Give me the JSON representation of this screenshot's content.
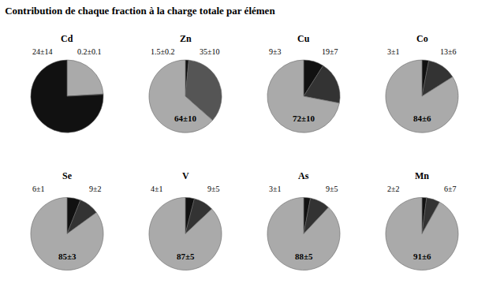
{
  "title": "Contribution de chaque fraction à la charge totale par élémen",
  "chart_data": [
    {
      "type": "pie",
      "title": "Cd",
      "values": [
        24.0,
        0.2,
        75.8
      ],
      "colors": [
        "#aaaaaa",
        "#222222",
        "#111111"
      ],
      "annotations": [
        "24±14",
        "0.2±0.1"
      ]
    },
    {
      "type": "pie",
      "title": "Zn",
      "values": [
        1.5,
        35.0,
        63.5
      ],
      "colors": [
        "#111111",
        "#555555",
        "#aaaaaa"
      ],
      "annotations": [
        "1.5±0.2",
        "35±10",
        "64±10"
      ]
    },
    {
      "type": "pie",
      "title": "Cu",
      "values": [
        9.0,
        19.0,
        72.0
      ],
      "colors": [
        "#111111",
        "#333333",
        "#aaaaaa"
      ],
      "annotations": [
        "9±3",
        "19±7",
        "72±10"
      ]
    },
    {
      "type": "pie",
      "title": "Co",
      "values": [
        3.0,
        13.0,
        84.0
      ],
      "colors": [
        "#111111",
        "#333333",
        "#aaaaaa"
      ],
      "annotations": [
        "3±1",
        "13±6",
        "84±6"
      ]
    },
    {
      "type": "pie",
      "title": "Se",
      "values": [
        6.0,
        9.0,
        85.0
      ],
      "colors": [
        "#111111",
        "#333333",
        "#aaaaaa"
      ],
      "annotations": [
        "6±1",
        "9±2",
        "85±3"
      ]
    },
    {
      "type": "pie",
      "title": "V",
      "values": [
        4.0,
        9.0,
        87.0
      ],
      "colors": [
        "#111111",
        "#333333",
        "#aaaaaa"
      ],
      "annotations": [
        "4±1",
        "9±5",
        "87±5"
      ]
    },
    {
      "type": "pie",
      "title": "As",
      "values": [
        3.0,
        9.0,
        88.0
      ],
      "colors": [
        "#111111",
        "#333333",
        "#aaaaaa"
      ],
      "annotations": [
        "3±1",
        "9±5",
        "88±5"
      ]
    },
    {
      "type": "pie",
      "title": "Mn",
      "values": [
        2.0,
        6.0,
        91.0
      ],
      "colors": [
        "#111111",
        "#333333",
        "#aaaaaa"
      ],
      "annotations": [
        "2±2",
        "6±7",
        "91±6"
      ]
    }
  ]
}
